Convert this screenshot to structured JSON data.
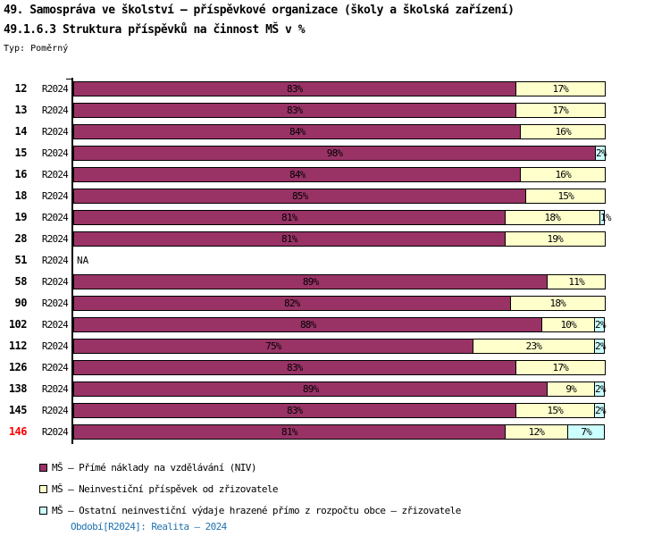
{
  "title": "49. Samospráva ve školství – příspěvkové organizace (školy a školská zařízení)",
  "subtitle": "49.1.6.3 Struktura příspěvků na činnost MŠ v %",
  "type_label": "Typ: Poměrný",
  "footer": {
    "text": "Období[R2024]: Realita – 2024",
    "color": "#1f72b0"
  },
  "legend": {
    "items": [
      {
        "label": "MŠ – Přímé náklady na vzdělávání (NIV)",
        "color": "#993366"
      },
      {
        "label": "MŠ – Neinvestiční příspěvek od zřizovatele",
        "color": "#ffffcc"
      },
      {
        "label": "MŠ – Ostatní neinvestiční výdaje hrazené přímo z rozpočtu obce – zřizovatele",
        "color": "#ccffff"
      }
    ]
  },
  "chart_data": {
    "type": "bar",
    "orientation": "horizontal",
    "stacked": true,
    "unit": "%",
    "xlim": [
      0,
      100
    ],
    "period_label": "R2024",
    "na_label": "NA",
    "highlighted_category": "146",
    "highlight_color": "#ff0000",
    "series_meta": [
      {
        "key": "niv",
        "name": "MŠ – Přímé náklady na vzdělávání (NIV)",
        "color": "#993366"
      },
      {
        "key": "prispevek-zrizovatele",
        "name": "MŠ – Neinvestiční příspěvek od zřizovatele",
        "color": "#ffffcc"
      },
      {
        "key": "ostatni-vydaje",
        "name": "MŠ – Ostatní neinvestiční výdaje hrazené přímo z rozpočtu obce – zřizovatele",
        "color": "#ccffff"
      }
    ],
    "rows": [
      {
        "category": "12",
        "period": "R2024",
        "values": [
          83,
          17,
          0
        ]
      },
      {
        "category": "13",
        "period": "R2024",
        "values": [
          83,
          17,
          0
        ]
      },
      {
        "category": "14",
        "period": "R2024",
        "values": [
          84,
          16,
          0
        ]
      },
      {
        "category": "15",
        "period": "R2024",
        "values": [
          98,
          0,
          2
        ]
      },
      {
        "category": "16",
        "period": "R2024",
        "values": [
          84,
          16,
          0
        ]
      },
      {
        "category": "18",
        "period": "R2024",
        "values": [
          85,
          15,
          0
        ]
      },
      {
        "category": "19",
        "period": "R2024",
        "values": [
          81,
          18,
          1
        ]
      },
      {
        "category": "28",
        "period": "R2024",
        "values": [
          81,
          19,
          0
        ]
      },
      {
        "category": "51",
        "period": "R2024",
        "na": true,
        "values": [
          null,
          null,
          null
        ]
      },
      {
        "category": "58",
        "period": "R2024",
        "values": [
          89,
          11,
          0
        ]
      },
      {
        "category": "90",
        "period": "R2024",
        "values": [
          82,
          18,
          0
        ]
      },
      {
        "category": "102",
        "period": "R2024",
        "values": [
          88,
          10,
          2
        ]
      },
      {
        "category": "112",
        "period": "R2024",
        "values": [
          75,
          23,
          2
        ]
      },
      {
        "category": "126",
        "period": "R2024",
        "values": [
          83,
          17,
          0
        ]
      },
      {
        "category": "138",
        "period": "R2024",
        "values": [
          89,
          9,
          2
        ]
      },
      {
        "category": "145",
        "period": "R2024",
        "values": [
          83,
          15,
          2
        ]
      },
      {
        "category": "146",
        "period": "R2024",
        "values": [
          81,
          12,
          7
        ]
      }
    ]
  }
}
